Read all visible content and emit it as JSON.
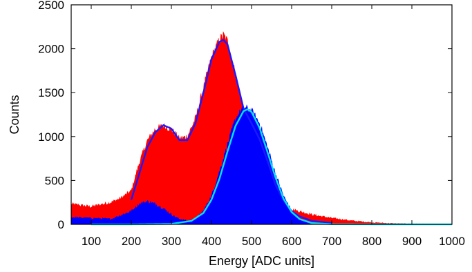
{
  "chart_data": {
    "type": "area",
    "xlabel": "Energy [ADC units]",
    "ylabel": "Counts",
    "xlim": [
      50,
      1000
    ],
    "ylim": [
      0,
      2500
    ],
    "x_ticks": [
      100,
      200,
      300,
      400,
      500,
      600,
      700,
      800,
      900,
      1000
    ],
    "y_ticks": [
      0,
      500,
      1000,
      1500,
      2000,
      2500
    ],
    "x_tick_labels": [
      "100",
      "200",
      "300",
      "400",
      "500",
      "600",
      "700",
      "800",
      "900",
      "1000"
    ],
    "y_tick_labels": [
      "0",
      "500",
      "1000",
      "1500",
      "2000",
      "2500"
    ],
    "grid": false,
    "legend": "none",
    "series": [
      {
        "color": "#ff0000",
        "style": "histogram",
        "x": [
          50,
          100,
          150,
          175,
          200,
          220,
          240,
          260,
          280,
          300,
          320,
          340,
          360,
          380,
          400,
          420,
          430,
          440,
          460,
          480,
          500,
          520,
          540,
          560,
          580,
          600,
          650,
          700,
          750,
          800,
          850,
          900,
          950,
          1000
        ],
        "y": [
          230,
          200,
          250,
          300,
          380,
          700,
          950,
          1080,
          1120,
          1080,
          970,
          1000,
          1200,
          1550,
          1900,
          2100,
          2150,
          2080,
          1700,
          1300,
          1100,
          950,
          700,
          450,
          250,
          170,
          110,
          70,
          40,
          20,
          10,
          5,
          3,
          2
        ]
      },
      {
        "color": "#0000ff",
        "style": "histogram",
        "x": [
          50,
          100,
          150,
          200,
          220,
          240,
          260,
          280,
          300,
          320,
          340,
          360,
          380,
          400,
          420,
          440,
          460,
          480,
          500,
          520,
          540,
          560,
          580,
          600,
          620,
          650,
          700,
          750,
          1000
        ],
        "y": [
          80,
          70,
          60,
          150,
          230,
          260,
          230,
          180,
          110,
          60,
          40,
          60,
          150,
          320,
          600,
          900,
          1200,
          1330,
          1290,
          1150,
          870,
          570,
          320,
          150,
          60,
          15,
          3,
          0,
          0
        ]
      },
      {
        "color": "#1a1aff",
        "style": "line",
        "x": [
          200,
          220,
          240,
          260,
          280,
          300,
          320,
          340,
          360,
          380,
          400,
          420,
          430,
          440,
          460,
          480,
          500,
          520,
          540,
          560,
          580,
          600,
          620,
          650,
          700
        ],
        "y": [
          280,
          580,
          880,
          1050,
          1130,
          1090,
          960,
          960,
          1150,
          1500,
          1880,
          2080,
          2100,
          2050,
          1700,
          1320,
          1150,
          970,
          720,
          450,
          270,
          150,
          90,
          40,
          15
        ]
      },
      {
        "color": "#00e5ff",
        "style": "line",
        "x": [
          100,
          200,
          300,
          350,
          380,
          400,
          420,
          440,
          460,
          480,
          490,
          500,
          520,
          540,
          560,
          580,
          600,
          620,
          650,
          700,
          800,
          1000
        ],
        "y": [
          0,
          0,
          5,
          40,
          130,
          280,
          520,
          830,
          1120,
          1290,
          1310,
          1280,
          1100,
          820,
          530,
          290,
          140,
          60,
          15,
          2,
          0,
          0
        ]
      }
    ]
  }
}
